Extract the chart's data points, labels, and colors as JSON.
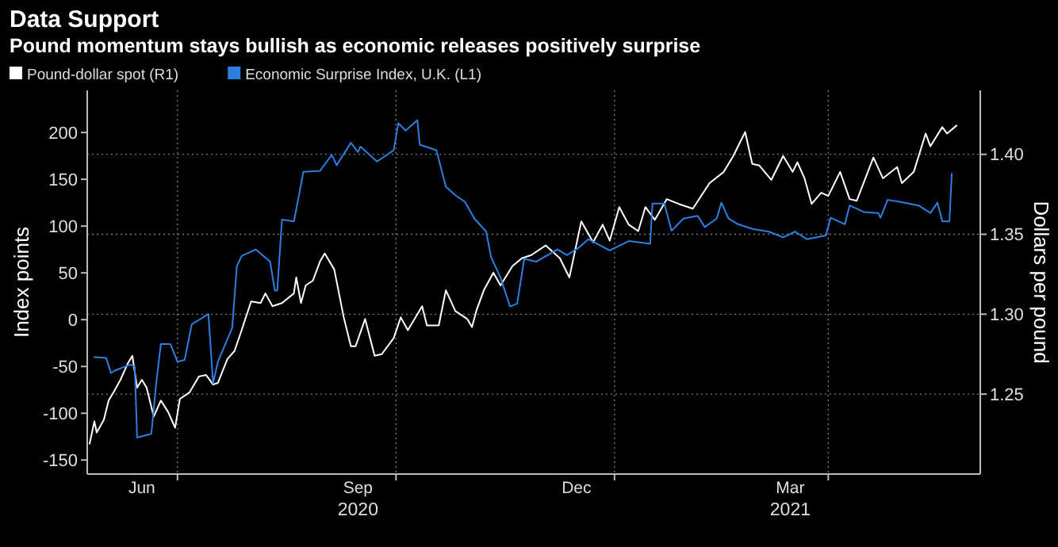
{
  "chart_data": {
    "type": "line",
    "title": "Data Support",
    "subtitle": "Pound momentum stays bullish as economic releases positively surprise",
    "ylabel": "Index points",
    "y2label": "Dollars per pound",
    "legend": "top left",
    "grid": true,
    "xlim": [
      "2020-05-24",
      "2021-06-04"
    ],
    "xticks": [
      {
        "value": "2020-06-16",
        "label": "Jun"
      },
      {
        "value": "2020-07-01",
        "label": null
      },
      {
        "value": "2020-09-15",
        "label": "Sep\n2020"
      },
      {
        "value": "2020-10-01",
        "label": null
      },
      {
        "value": "2020-12-16",
        "label": "Dec"
      },
      {
        "value": "2021-01-01",
        "label": null
      },
      {
        "value": "2021-03-16",
        "label": "Mar\n2021"
      },
      {
        "value": "2021-04-01",
        "label": null
      }
    ],
    "ylim": [
      -165,
      245
    ],
    "yticks": [
      -150,
      -100,
      -50,
      0,
      50,
      100,
      150,
      200
    ],
    "y2lim": [
      1.2,
      1.44
    ],
    "y2ticks": [
      1.25,
      {
        "value": 1.3,
        "label": "1.30"
      },
      1.35,
      {
        "value": 1.4,
        "label": "1.40"
      }
    ],
    "series": [
      {
        "name": "Pound-dollar spot (R1)",
        "color": "#ffffff",
        "axis": "y2",
        "x": [
          "2020-05-25",
          "2020-05-27",
          "2020-05-28",
          "2020-05-31",
          "2020-06-02",
          "2020-06-04",
          "2020-06-07",
          "2020-06-10",
          "2020-06-12",
          "2020-06-14",
          "2020-06-16",
          "2020-06-18",
          "2020-06-21",
          "2020-06-24",
          "2020-06-27",
          "2020-06-30",
          "2020-07-02",
          "2020-07-06",
          "2020-07-10",
          "2020-07-13",
          "2020-07-16",
          "2020-07-18",
          "2020-07-22",
          "2020-07-25",
          "2020-07-28",
          "2020-08-01",
          "2020-08-05",
          "2020-08-07",
          "2020-08-10",
          "2020-08-14",
          "2020-08-19",
          "2020-08-20",
          "2020-08-22",
          "2020-08-24",
          "2020-08-27",
          "2020-08-30",
          "2020-09-01",
          "2020-09-05",
          "2020-09-09",
          "2020-09-12",
          "2020-09-14",
          "2020-09-18",
          "2020-09-22",
          "2020-09-25",
          "2020-09-30",
          "2020-10-03",
          "2020-10-06",
          "2020-10-12",
          "2020-10-14",
          "2020-10-19",
          "2020-10-22",
          "2020-10-26",
          "2020-10-31",
          "2020-11-02",
          "2020-11-04",
          "2020-11-07",
          "2020-11-11",
          "2020-11-14",
          "2020-11-19",
          "2020-11-23",
          "2020-11-27",
          "2020-12-03",
          "2020-12-09",
          "2020-12-13",
          "2020-12-18",
          "2020-12-23",
          "2020-12-27",
          "2020-12-30",
          "2021-01-03",
          "2021-01-07",
          "2021-01-11",
          "2021-01-14",
          "2021-01-18",
          "2021-01-23",
          "2021-01-28",
          "2021-02-03",
          "2021-02-10",
          "2021-02-16",
          "2021-02-20",
          "2021-02-25",
          "2021-02-28",
          "2021-03-03",
          "2021-03-08",
          "2021-03-13",
          "2021-03-17",
          "2021-03-19",
          "2021-03-22",
          "2021-03-25",
          "2021-03-29",
          "2021-04-01",
          "2021-04-06",
          "2021-04-10",
          "2021-04-13",
          "2021-04-20",
          "2021-04-24",
          "2021-04-30",
          "2021-05-02",
          "2021-05-07",
          "2021-05-12",
          "2021-05-14",
          "2021-05-19",
          "2021-05-21",
          "2021-05-25"
        ],
        "values": [
          1.219,
          1.233,
          1.226,
          1.234,
          1.246,
          1.251,
          1.259,
          1.269,
          1.274,
          1.254,
          1.259,
          1.254,
          1.236,
          1.246,
          1.239,
          1.229,
          1.247,
          1.251,
          1.261,
          1.262,
          1.256,
          1.257,
          1.272,
          1.277,
          1.29,
          1.308,
          1.307,
          1.313,
          1.305,
          1.307,
          1.313,
          1.323,
          1.307,
          1.318,
          1.321,
          1.333,
          1.338,
          1.328,
          1.298,
          1.28,
          1.28,
          1.297,
          1.274,
          1.275,
          1.285,
          1.298,
          1.29,
          1.305,
          1.293,
          1.293,
          1.315,
          1.302,
          1.297,
          1.292,
          1.303,
          1.315,
          1.326,
          1.318,
          1.33,
          1.335,
          1.337,
          1.343,
          1.335,
          1.323,
          1.358,
          1.345,
          1.356,
          1.346,
          1.367,
          1.356,
          1.352,
          1.367,
          1.359,
          1.372,
          1.369,
          1.366,
          1.382,
          1.389,
          1.399,
          1.414,
          1.394,
          1.393,
          1.384,
          1.399,
          1.389,
          1.395,
          1.385,
          1.369,
          1.376,
          1.374,
          1.389,
          1.372,
          1.371,
          1.398,
          1.385,
          1.392,
          1.382,
          1.389,
          1.413,
          1.405,
          1.417,
          1.413,
          1.418
        ]
      },
      {
        "name": "Economic Surprise Index, U.K. (L1)",
        "color": "#2b7fe0",
        "axis": "y",
        "x": [
          "2020-05-27",
          "2020-06-01",
          "2020-06-03",
          "2020-06-05",
          "2020-06-11",
          "2020-06-13",
          "2020-06-14",
          "2020-06-20",
          "2020-06-22",
          "2020-06-24",
          "2020-06-28",
          "2020-07-01",
          "2020-07-04",
          "2020-07-07",
          "2020-07-14",
          "2020-07-16",
          "2020-07-18",
          "2020-07-24",
          "2020-07-26",
          "2020-07-28",
          "2020-08-03",
          "2020-08-09",
          "2020-08-11",
          "2020-08-12",
          "2020-08-14",
          "2020-08-19",
          "2020-08-21",
          "2020-08-23",
          "2020-08-30",
          "2020-09-04",
          "2020-09-06",
          "2020-09-12",
          "2020-09-15",
          "2020-09-16",
          "2020-09-23",
          "2020-09-30",
          "2020-10-02",
          "2020-10-05",
          "2020-10-10",
          "2020-10-11",
          "2020-10-18",
          "2020-10-22",
          "2020-10-26",
          "2020-10-30",
          "2020-11-03",
          "2020-11-08",
          "2020-11-10",
          "2020-11-14",
          "2020-11-18",
          "2020-11-21",
          "2020-11-24",
          "2020-11-29",
          "2020-12-08",
          "2020-12-12",
          "2020-12-17",
          "2020-12-21",
          "2020-12-30",
          "2021-01-07",
          "2021-01-16",
          "2021-01-17",
          "2021-01-22",
          "2021-01-25",
          "2021-01-30",
          "2021-02-05",
          "2021-02-08",
          "2021-02-13",
          "2021-02-15",
          "2021-02-18",
          "2021-02-22",
          "2021-02-28",
          "2021-03-07",
          "2021-03-13",
          "2021-03-18",
          "2021-03-23",
          "2021-03-31",
          "2021-04-02",
          "2021-04-08",
          "2021-04-10",
          "2021-04-16",
          "2021-04-22",
          "2021-04-23",
          "2021-04-26",
          "2021-05-01",
          "2021-05-09",
          "2021-05-14",
          "2021-05-17",
          "2021-05-19",
          "2021-05-22",
          "2021-05-23"
        ],
        "values": [
          -40,
          -41,
          -57,
          -54,
          -48,
          -50,
          -126,
          -122,
          -69,
          -26,
          -26,
          -45,
          -43,
          -5,
          6,
          -68,
          -45,
          -9,
          57,
          68,
          75,
          62,
          31,
          31,
          107,
          105,
          131,
          158,
          159,
          176,
          165,
          189,
          179,
          185,
          169,
          181,
          210,
          202,
          213,
          187,
          181,
          142,
          133,
          126,
          108,
          94,
          67,
          45,
          14,
          17,
          65,
          62,
          75,
          69,
          77,
          86,
          74,
          84,
          81,
          124,
          124,
          95,
          108,
          111,
          99,
          108,
          125,
          108,
          102,
          97,
          94,
          88,
          94,
          86,
          90,
          109,
          102,
          122,
          115,
          114,
          109,
          128,
          126,
          122,
          114,
          125,
          105,
          105,
          156
        ]
      }
    ]
  }
}
